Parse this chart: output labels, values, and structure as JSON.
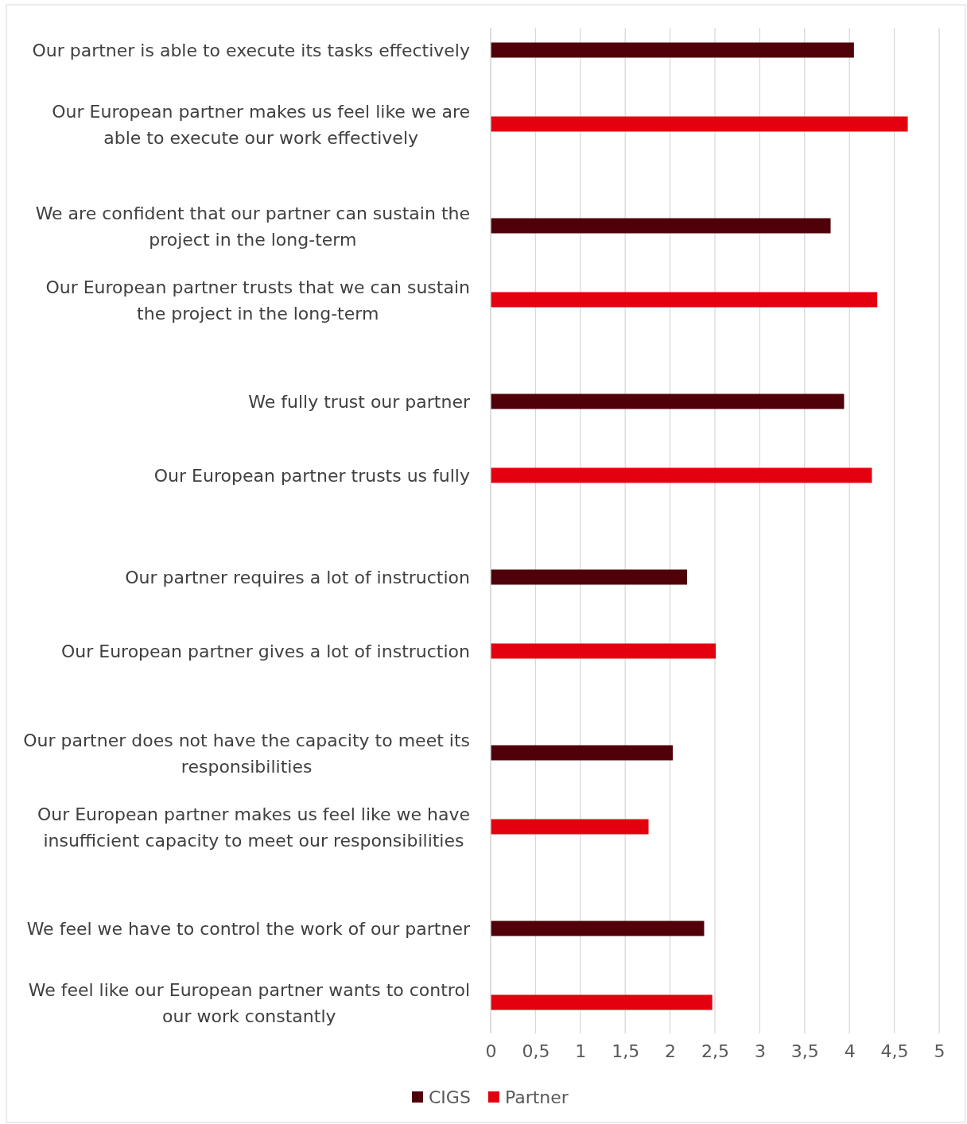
{
  "chart_data": {
    "type": "bar",
    "orientation": "horizontal",
    "categories": [
      "Our partner is able to execute its tasks effectively",
      "Our European partner makes us feel like we are able to execute our work effectively",
      "We are confident that our partner can sustain the project in the long-term",
      "Our European partner trusts that we can sustain the project in the long-term",
      "We fully trust our partner",
      "Our European partner trusts us fully",
      "Our partner requires a lot of instruction",
      "Our European partner gives a lot of instruction",
      "Our partner does not have the capacity to meet its responsibilities",
      "Our European partner makes us feel like we have insufficient capacity to meet our responsibilities",
      "We feel we have to control the work of our partner",
      "We feel like our European partner wants to control our work constantly"
    ],
    "series": [
      {
        "name": "CIGS",
        "color": "#4f0008",
        "values": [
          4.05,
          null,
          3.79,
          null,
          3.94,
          null,
          2.19,
          null,
          2.03,
          null,
          2.38,
          null
        ]
      },
      {
        "name": "Partner",
        "color": "#e3000f",
        "values": [
          null,
          4.65,
          null,
          4.31,
          null,
          4.25,
          null,
          2.51,
          null,
          1.76,
          null,
          2.47
        ]
      }
    ],
    "xlim": [
      0,
      5
    ],
    "xticks": [
      0,
      {
        "value": 0.5,
        "label": "0,5"
      },
      1,
      {
        "value": 1.5,
        "label": "1,5"
      },
      2,
      {
        "value": 2.5,
        "label": "2,5"
      },
      3,
      {
        "value": 3.5,
        "label": "3,5"
      },
      4,
      {
        "value": 4.5,
        "label": "4,5"
      },
      5
    ],
    "grid": "x",
    "legend": "bottom"
  }
}
